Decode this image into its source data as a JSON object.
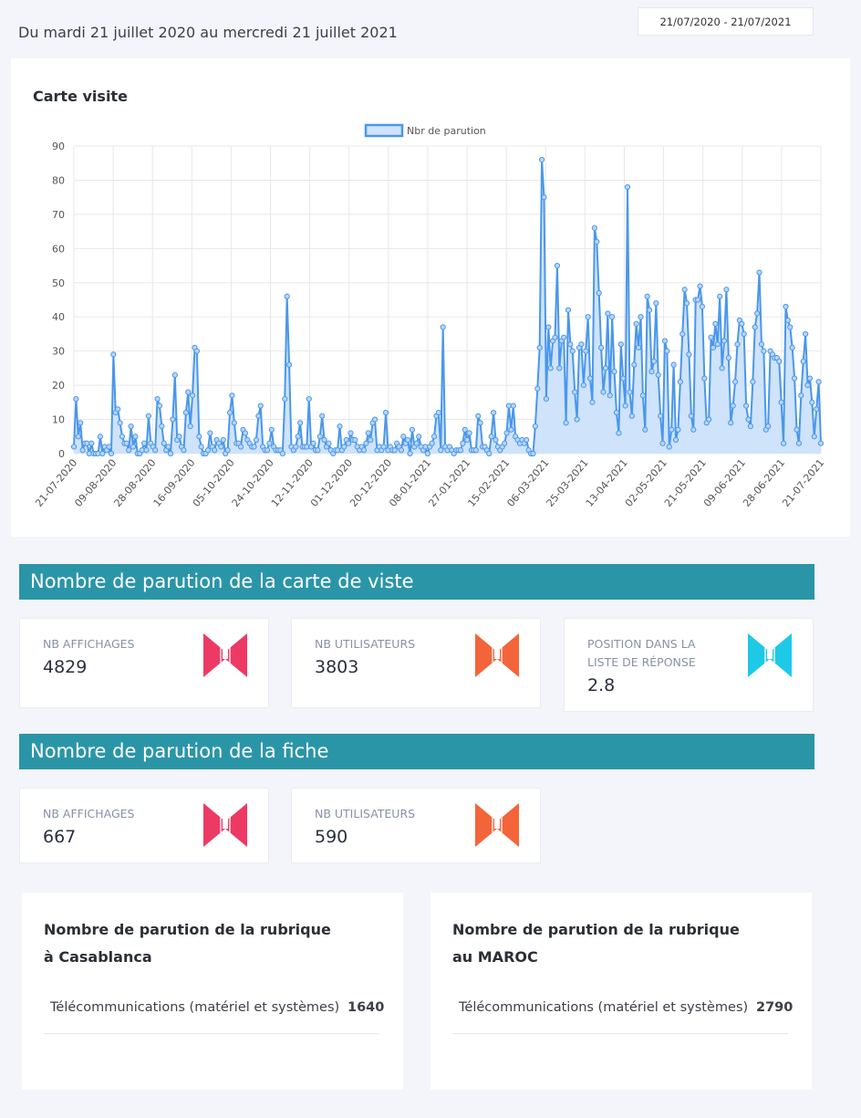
{
  "header": {
    "date_range_text": "Du mardi 21 juillet 2020 au mercredi 21 juillet 2021",
    "date_picker_value": "21/07/2020 - 21/07/2021"
  },
  "chart_card": {
    "title": "Carte visite"
  },
  "chart_data": {
    "type": "area",
    "legend": "Nbr de parution",
    "legend_position": "top",
    "grid": true,
    "ylim": [
      0,
      90
    ],
    "y_ticks": [
      0,
      10,
      20,
      30,
      40,
      50,
      60,
      70,
      80,
      90
    ],
    "x_ticks": [
      "21-07-2020",
      "09-08-2020",
      "28-08-2020",
      "16-09-2020",
      "05-10-2020",
      "24-10-2020",
      "12-11-2020",
      "01-12-2020",
      "20-12-2020",
      "08-01-2021",
      "27-01-2021",
      "15-02-2021",
      "06-03-2021",
      "25-03-2021",
      "13-04-2021",
      "02-05-2021",
      "21-05-2021",
      "09-06-2021",
      "28-06-2021",
      "21-07-2021"
    ],
    "line_color": "#4a97ec",
    "fill_color": "#cfe3fb",
    "values": [
      2,
      16,
      5,
      9,
      1,
      3,
      3,
      0,
      3,
      0,
      0,
      0,
      5,
      0,
      2,
      1,
      2,
      0,
      29,
      12,
      13,
      9,
      5,
      3,
      3,
      1,
      8,
      2,
      5,
      0,
      0,
      1,
      3,
      1,
      11,
      3,
      2,
      1,
      16,
      14,
      8,
      3,
      1,
      2,
      0,
      10,
      23,
      4,
      5,
      2,
      1,
      12,
      18,
      8,
      17,
      31,
      30,
      5,
      2,
      0,
      0,
      1,
      6,
      2,
      1,
      4,
      3,
      2,
      4,
      0,
      1,
      12,
      17,
      9,
      3,
      3,
      2,
      7,
      6,
      4,
      3,
      2,
      2,
      4,
      11,
      14,
      2,
      1,
      1,
      3,
      7,
      2,
      1,
      1,
      1,
      0,
      16,
      46,
      26,
      2,
      1,
      2,
      5,
      9,
      2,
      2,
      2,
      16,
      2,
      3,
      1,
      1,
      5,
      11,
      4,
      2,
      3,
      1,
      0,
      1,
      1,
      8,
      1,
      2,
      4,
      3,
      6,
      4,
      4,
      2,
      1,
      2,
      1,
      3,
      6,
      4,
      9,
      10,
      1,
      2,
      1,
      2,
      12,
      1,
      2,
      1,
      1,
      3,
      2,
      1,
      5,
      3,
      4,
      0,
      7,
      2,
      3,
      5,
      2,
      1,
      2,
      0,
      2,
      3,
      5,
      11,
      12,
      1,
      37,
      2,
      1,
      2,
      1,
      0,
      1,
      1,
      1,
      3,
      7,
      4,
      6,
      1,
      1,
      1,
      11,
      9,
      2,
      2,
      1,
      0,
      5,
      12,
      4,
      2,
      1,
      2,
      3,
      6,
      14,
      7,
      14,
      5,
      4,
      3,
      4,
      3,
      4,
      1,
      0,
      0,
      8,
      19,
      31,
      86,
      75,
      16,
      37,
      25,
      33,
      34,
      55,
      25,
      33,
      34,
      9,
      42,
      32,
      30,
      18,
      10,
      31,
      32,
      20,
      30,
      40,
      22,
      15,
      66,
      62,
      47,
      31,
      18,
      25,
      41,
      17,
      40,
      24,
      12,
      6,
      32,
      22,
      14,
      78,
      18,
      11,
      26,
      38,
      31,
      40,
      17,
      7,
      46,
      42,
      24,
      27,
      44,
      23,
      11,
      3,
      33,
      30,
      2,
      7,
      26,
      4,
      7,
      21,
      35,
      48,
      44,
      29,
      11,
      7,
      45,
      45,
      49,
      43,
      22,
      9,
      10,
      34,
      31,
      38,
      32,
      46,
      25,
      33,
      48,
      28,
      9,
      14,
      21,
      32,
      39,
      38,
      35,
      14,
      10,
      8,
      21,
      37,
      41,
      53,
      32,
      30,
      7,
      8,
      30,
      29,
      28,
      28,
      27,
      15,
      3,
      43,
      39,
      37,
      31,
      22,
      7,
      3,
      17,
      27,
      35,
      20,
      22,
      15,
      5,
      13,
      21,
      3
    ]
  },
  "sections": {
    "carte_header": "Nombre de parution de la carte de viste",
    "fiche_header": "Nombre de parution de la fiche"
  },
  "carte_stats": [
    {
      "label": "NB AFFICHAGES",
      "value": "4829",
      "icon": "phone-icon",
      "color": "#ec3a64"
    },
    {
      "label": "NB UTILISATEURS",
      "value": "3803",
      "icon": "phone-icon",
      "color": "#f4643a"
    },
    {
      "label": "POSITION DANS LA LISTE DE RÉPONSE",
      "value": "2.8",
      "icon": "phone-icon",
      "color": "#1ec9e8"
    }
  ],
  "fiche_stats": [
    {
      "label": "NB AFFICHAGES",
      "value": "667",
      "icon": "phone-icon",
      "color": "#ec3a64"
    },
    {
      "label": "NB UTILISATEURS",
      "value": "590",
      "icon": "phone-icon",
      "color": "#f4643a"
    }
  ],
  "rubriques": [
    {
      "title": "Nombre de parution de la rubrique à Casablanca",
      "item_name": "Télécommunications (matériel et systèmes)",
      "item_count": "1640"
    },
    {
      "title": "Nombre de parution de la rubrique au MAROC",
      "item_name": "Télécommunications (matériel et systèmes)",
      "item_count": "2790"
    }
  ]
}
